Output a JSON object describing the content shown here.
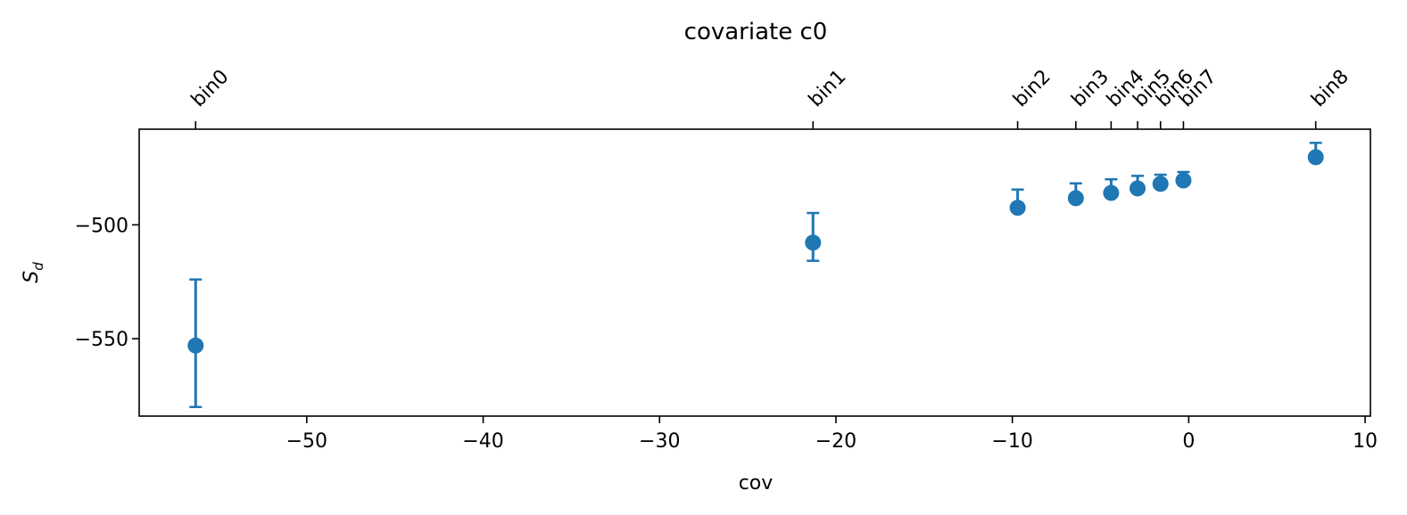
{
  "chart_data": {
    "type": "scatter",
    "title": "covariate c0",
    "xlabel": "cov",
    "ylabel": "S_d",
    "ylabel_main": "S",
    "ylabel_sub": "d",
    "xlim": [
      -59.5,
      10.3
    ],
    "ylim": [
      -584,
      -458
    ],
    "xticks": [
      -50,
      -40,
      -30,
      -20,
      -10,
      0,
      10
    ],
    "xtick_labels": [
      "−50",
      "−40",
      "−30",
      "−20",
      "−10",
      "0",
      "10"
    ],
    "yticks": [
      -500,
      -550
    ],
    "ytick_labels": [
      "−500",
      "−550"
    ],
    "grid": false,
    "legend": "none",
    "color": "#1f77b4",
    "points": [
      {
        "bin": "bin0",
        "x": -56.3,
        "y": -553.0,
        "err_low": -580.0,
        "err_high": -524.0
      },
      {
        "bin": "bin1",
        "x": -21.3,
        "y": -507.8,
        "err_low": -515.8,
        "err_high": -494.8
      },
      {
        "bin": "bin2",
        "x": -9.7,
        "y": -492.5,
        "err_low": -492.5,
        "err_high": -484.5
      },
      {
        "bin": "bin3",
        "x": -6.4,
        "y": -488.3,
        "err_low": -488.3,
        "err_high": -481.8
      },
      {
        "bin": "bin4",
        "x": -4.4,
        "y": -486.0,
        "err_low": -486.0,
        "err_high": -480.0
      },
      {
        "bin": "bin5",
        "x": -2.9,
        "y": -484.0,
        "err_low": -484.0,
        "err_high": -478.5
      },
      {
        "bin": "bin6",
        "x": -1.6,
        "y": -482.0,
        "err_low": -482.0,
        "err_high": -478.0
      },
      {
        "bin": "bin7",
        "x": -0.3,
        "y": -480.5,
        "err_low": -480.5,
        "err_high": -476.8
      },
      {
        "bin": "bin8",
        "x": 7.2,
        "y": -470.3,
        "err_low": -470.3,
        "err_high": -464.0
      }
    ]
  }
}
